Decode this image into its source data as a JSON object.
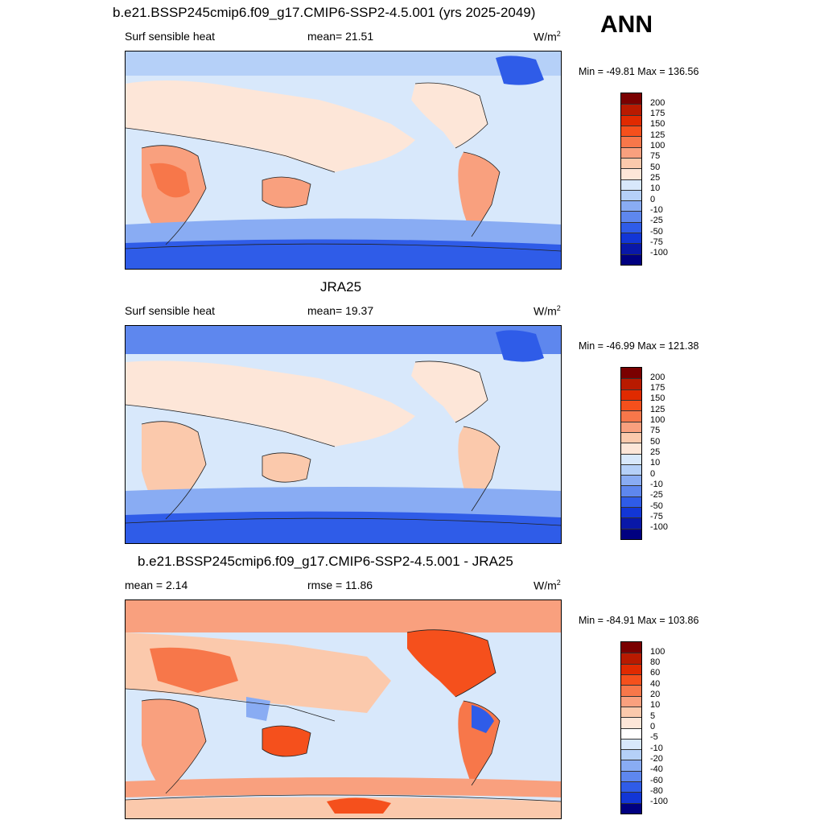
{
  "season": "ANN",
  "panels": [
    {
      "title": "b.e21.BSSP245cmip6.f09_g17.CMIP6-SSP2-4.5.001 (yrs 2025-2049)",
      "left_label": "Surf sensible heat",
      "mid_label": "mean=  21.51",
      "unit": "W/m",
      "unit_sup": "2",
      "minmax": "Min = -49.81 Max = 136.56",
      "colorbar": {
        "labels": [
          "200",
          "175",
          "150",
          "125",
          "100",
          "75",
          "50",
          "25",
          "10",
          "0",
          "-10",
          "-25",
          "-50",
          "-75",
          "-100"
        ],
        "colors": [
          "#7a0000",
          "#b81a00",
          "#e02a00",
          "#f5501c",
          "#f7774a",
          "#f9a07e",
          "#fbc9ac",
          "#fde6d8",
          "#d8e8fb",
          "#b5d0f8",
          "#89acf3",
          "#5e87ee",
          "#2f5ce8",
          "#1236d6",
          "#0918a8",
          "#000080"
        ]
      }
    },
    {
      "title": "JRA25",
      "left_label": "Surf sensible heat",
      "mid_label": "mean=  19.37",
      "unit": "W/m",
      "unit_sup": "2",
      "minmax": "Min = -46.99 Max = 121.38",
      "colorbar": {
        "labels": [
          "200",
          "175",
          "150",
          "125",
          "100",
          "75",
          "50",
          "25",
          "10",
          "0",
          "-10",
          "-25",
          "-50",
          "-75",
          "-100"
        ],
        "colors": [
          "#7a0000",
          "#b81a00",
          "#e02a00",
          "#f5501c",
          "#f7774a",
          "#f9a07e",
          "#fbc9ac",
          "#fde6d8",
          "#d8e8fb",
          "#b5d0f8",
          "#89acf3",
          "#5e87ee",
          "#2f5ce8",
          "#1236d6",
          "#0918a8",
          "#000080"
        ]
      }
    },
    {
      "title": "b.e21.BSSP245cmip6.f09_g17.CMIP6-SSP2-4.5.001 - JRA25",
      "left_label": "mean =   2.14",
      "mid_label": "rmse =  11.86",
      "unit": "W/m",
      "unit_sup": "2",
      "minmax": "Min = -84.91 Max = 103.86",
      "colorbar": {
        "labels": [
          "100",
          "80",
          "60",
          "40",
          "20",
          "10",
          "5",
          "0",
          "-5",
          "-10",
          "-20",
          "-40",
          "-60",
          "-80",
          "-100"
        ],
        "colors": [
          "#7a0000",
          "#b81a00",
          "#e02a00",
          "#f5501c",
          "#f7774a",
          "#f9a07e",
          "#fbc9ac",
          "#fde6d8",
          "#ffffff",
          "#d8e8fb",
          "#b5d0f8",
          "#89acf3",
          "#5e87ee",
          "#2f5ce8",
          "#1236d6",
          "#000080"
        ]
      }
    }
  ]
}
